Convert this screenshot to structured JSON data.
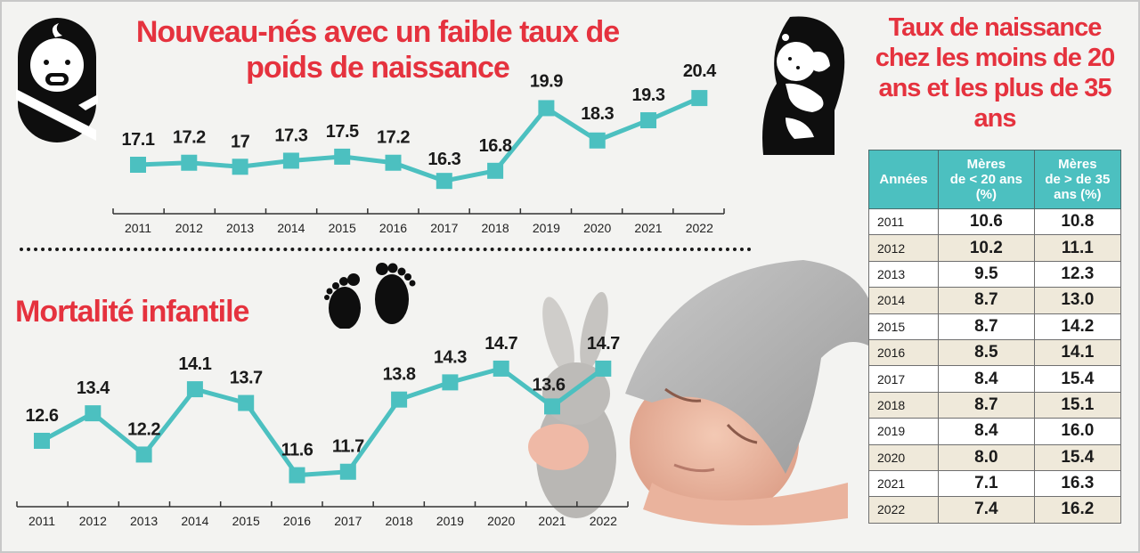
{
  "colors": {
    "title_red": "#e5323e",
    "line_teal": "#4cc0c0",
    "table_header": "#4cc0c0",
    "table_alt_row": "#efe9da",
    "background": "#f3f3f1"
  },
  "icons": {
    "swaddled_baby": "swaddled-baby-icon",
    "mother_child": "mother-holding-baby-icon",
    "footprints": "baby-footprints-icon"
  },
  "titles": {
    "low_birth_weight": "Nouveau-nés avec un faible taux de poids de naissance",
    "mortality": "Mortalité infantile",
    "birth_rate": "Taux de naissance chez les moins de 20 ans et les plus de 35 ans"
  },
  "chart_data": [
    {
      "type": "line",
      "title": "Nouveau-nés avec un faible taux de poids de naissance",
      "xlabel": "",
      "ylabel": "",
      "categories": [
        "2011",
        "2012",
        "2013",
        "2014",
        "2015",
        "2016",
        "2017",
        "2018",
        "2019",
        "2020",
        "2021",
        "2022"
      ],
      "values": [
        17.1,
        17.2,
        17,
        17.3,
        17.5,
        17.2,
        16.3,
        16.8,
        19.9,
        18.3,
        19.3,
        20.4
      ],
      "value_labels": [
        "17.1",
        "17.2",
        "17",
        "17.3",
        "17.5",
        "17.2",
        "16.3",
        "16.8",
        "19.9",
        "18.3",
        "19.3",
        "20.4"
      ],
      "grid": false,
      "marker": "square",
      "color": "#4cc0c0"
    },
    {
      "type": "line",
      "title": "Mortalité infantile",
      "xlabel": "",
      "ylabel": "",
      "categories": [
        "2011",
        "2012",
        "2013",
        "2014",
        "2015",
        "2016",
        "2017",
        "2018",
        "2019",
        "2020",
        "2021",
        "2022"
      ],
      "values": [
        12.6,
        13.4,
        12.2,
        14.1,
        13.7,
        11.6,
        11.7,
        13.8,
        14.3,
        14.7,
        13.6,
        14.7
      ],
      "value_labels": [
        "12.6",
        "13.4",
        "12.2",
        "14.1",
        "13.7",
        "11.6",
        "11.7",
        "13.8",
        "14.3",
        "14.7",
        "13.6",
        "14.7"
      ],
      "grid": false,
      "marker": "square",
      "color": "#4cc0c0"
    },
    {
      "type": "table",
      "title": "Taux de naissance chez les moins de 20 ans et les plus de 35 ans",
      "columns": [
        "Années",
        "Mères de < 20 ans (%)",
        "Mères de > de 35 ans (%)"
      ],
      "rows": [
        [
          "2011",
          "10.6",
          "10.8"
        ],
        [
          "2012",
          "10.2",
          "11.1"
        ],
        [
          "2013",
          "9.5",
          "12.3"
        ],
        [
          "2014",
          "8.7",
          "13.0"
        ],
        [
          "2015",
          "8.7",
          "14.2"
        ],
        [
          "2016",
          "8.5",
          "14.1"
        ],
        [
          "2017",
          "8.4",
          "15.4"
        ],
        [
          "2018",
          "8.7",
          "15.1"
        ],
        [
          "2019",
          "8.4",
          "16.0"
        ],
        [
          "2020",
          "8.0",
          "15.4"
        ],
        [
          "2021",
          "7.1",
          "16.3"
        ],
        [
          "2022",
          "7.4",
          "16.2"
        ]
      ]
    }
  ],
  "table": {
    "headers": {
      "year": "Années",
      "under20_l1": "Mères",
      "under20_l2": "de < 20 ans",
      "under20_l3": "(%)",
      "over35_l1": "Mères",
      "over35_l2": "de > de 35",
      "over35_l3": "ans (%)"
    },
    "rows": [
      {
        "year": "2011",
        "under20": "10.6",
        "over35": "10.8"
      },
      {
        "year": "2012",
        "under20": "10.2",
        "over35": "11.1"
      },
      {
        "year": "2013",
        "under20": "9.5",
        "over35": "12.3"
      },
      {
        "year": "2014",
        "under20": "8.7",
        "over35": "13.0"
      },
      {
        "year": "2015",
        "under20": "8.7",
        "over35": "14.2"
      },
      {
        "year": "2016",
        "under20": "8.5",
        "over35": "14.1"
      },
      {
        "year": "2017",
        "under20": "8.4",
        "over35": "15.4"
      },
      {
        "year": "2018",
        "under20": "8.7",
        "over35": "15.1"
      },
      {
        "year": "2019",
        "under20": "8.4",
        "over35": "16.0"
      },
      {
        "year": "2020",
        "under20": "8.0",
        "over35": "15.4"
      },
      {
        "year": "2021",
        "under20": "7.1",
        "over35": "16.3"
      },
      {
        "year": "2022",
        "under20": "7.4",
        "over35": "16.2"
      }
    ]
  }
}
